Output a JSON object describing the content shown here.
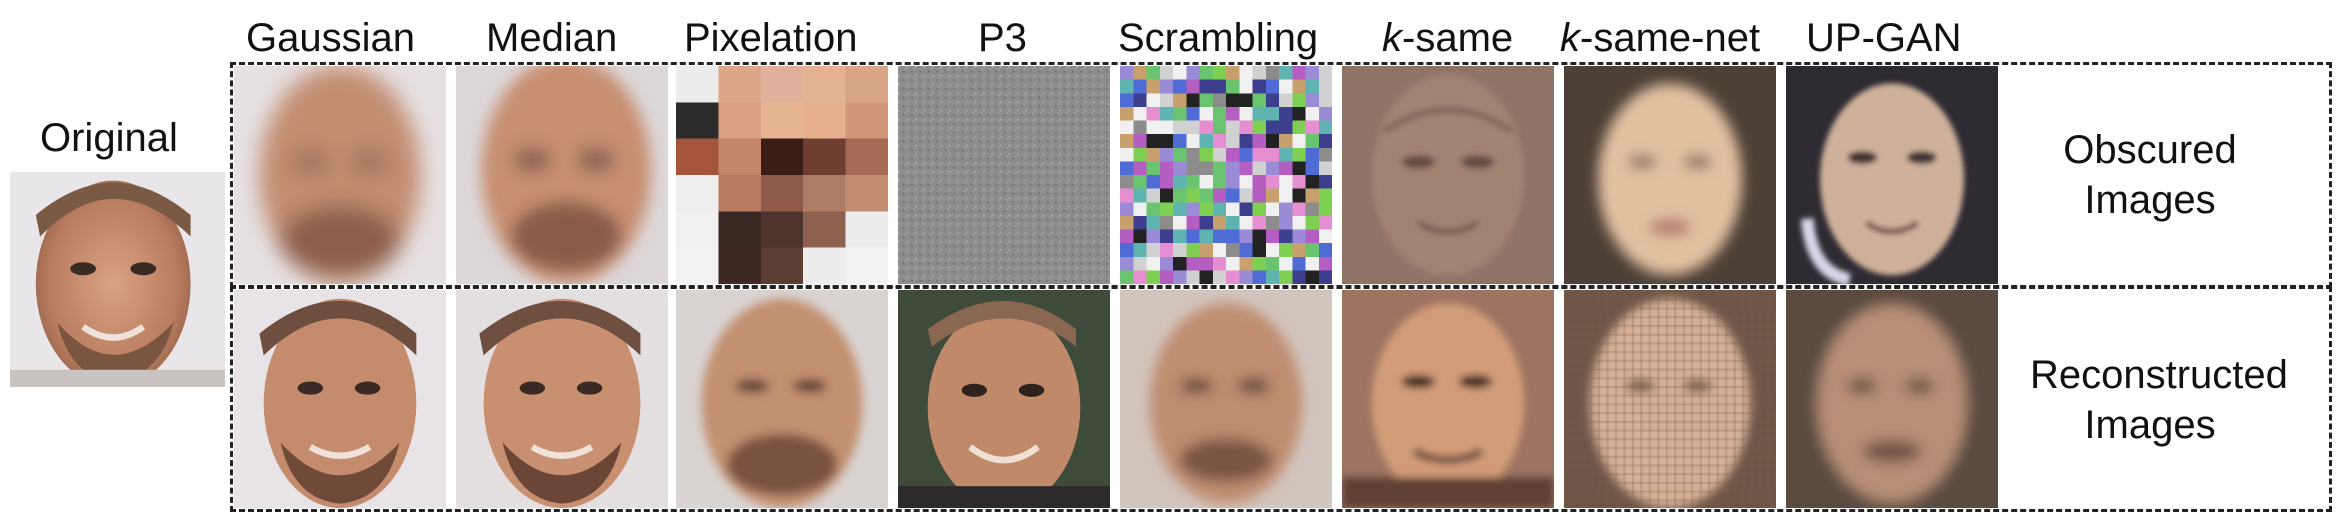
{
  "original_label": "Original",
  "columns": [
    {
      "label": "Gaussian",
      "italic_prefix": ""
    },
    {
      "label": "Median",
      "italic_prefix": ""
    },
    {
      "label": "Pixelation",
      "italic_prefix": ""
    },
    {
      "label": "P3",
      "italic_prefix": ""
    },
    {
      "label": "Scrambling",
      "italic_prefix": ""
    },
    {
      "label": "-same",
      "italic_prefix": "k"
    },
    {
      "label": "-same-net",
      "italic_prefix": "k"
    },
    {
      "label": "UP-GAN",
      "italic_prefix": ""
    }
  ],
  "rows": [
    {
      "label_line1": "Obscured",
      "label_line2": "Images"
    },
    {
      "label_line1": "Reconstructed",
      "label_line2": "Images"
    }
  ],
  "colors": {
    "skin": "#c98f72",
    "beard": "#7a5540",
    "background": "#e6e3e6",
    "gray_p3": "#8c8c8f",
    "dashed_border": "#222222"
  }
}
